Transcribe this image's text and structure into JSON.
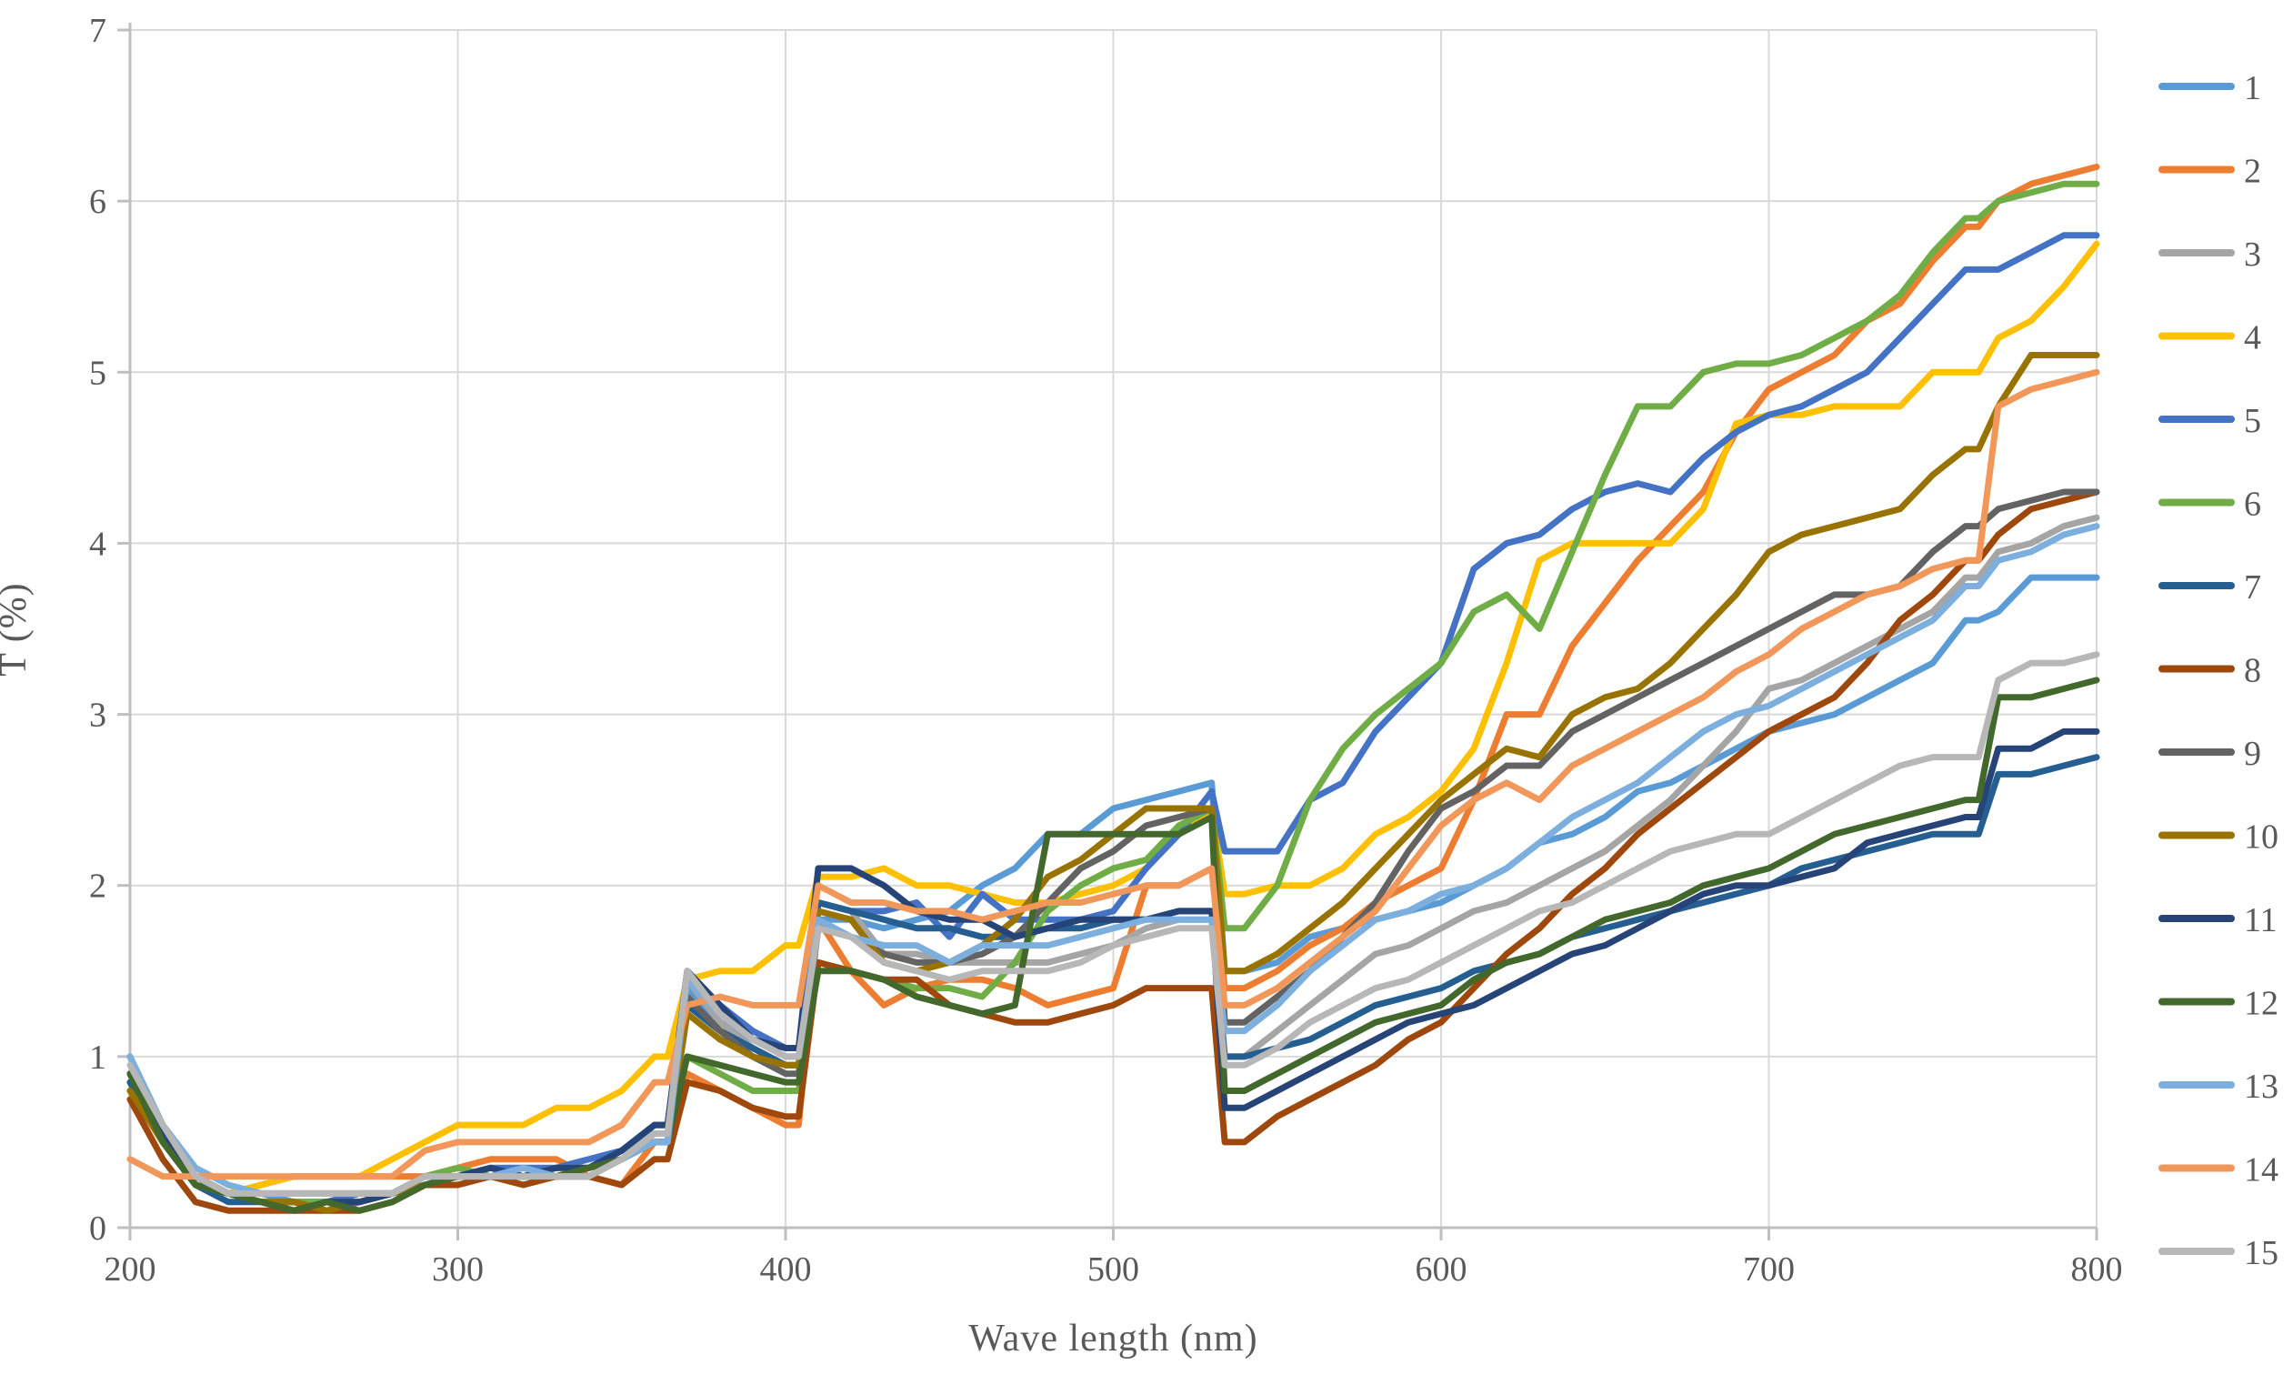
{
  "page": {
    "background": "#FFFFFF"
  },
  "style": {
    "grid_color": "#D9D9D9",
    "axis_color": "#BFBFBF",
    "text_color": "#595959",
    "line_width": 7
  },
  "chart_data": {
    "type": "line",
    "title": "",
    "xlabel": "Wave length (nm)",
    "ylabel": "T (%)",
    "xlim": [
      200,
      800
    ],
    "ylim": [
      0,
      7
    ],
    "xticks": [
      200,
      300,
      400,
      500,
      600,
      700,
      800
    ],
    "yticks": [
      0,
      1,
      2,
      3,
      4,
      5,
      6,
      7
    ],
    "grid": true,
    "legend_position": "right",
    "x": [
      200,
      210,
      220,
      230,
      240,
      250,
      260,
      270,
      280,
      290,
      300,
      310,
      320,
      330,
      340,
      350,
      360,
      364,
      370,
      380,
      390,
      400,
      404,
      410,
      420,
      430,
      440,
      450,
      460,
      470,
      480,
      490,
      500,
      510,
      520,
      530,
      534,
      540,
      550,
      560,
      570,
      580,
      590,
      600,
      610,
      620,
      630,
      640,
      650,
      660,
      670,
      680,
      690,
      700,
      710,
      720,
      730,
      740,
      750,
      760,
      764,
      770,
      780,
      790,
      800
    ],
    "series": [
      {
        "name": "1",
        "color": "#5B9BD5",
        "values": [
          1.0,
          0.55,
          0.3,
          0.2,
          0.2,
          0.15,
          0.15,
          0.2,
          0.2,
          0.3,
          0.3,
          0.3,
          0.35,
          0.3,
          0.35,
          0.45,
          0.6,
          0.6,
          1.4,
          1.2,
          1.1,
          1.0,
          1.0,
          1.8,
          1.8,
          1.75,
          1.8,
          1.85,
          2.0,
          2.1,
          2.3,
          2.3,
          2.45,
          2.5,
          2.55,
          2.6,
          1.5,
          1.5,
          1.55,
          1.7,
          1.75,
          1.8,
          1.85,
          1.9,
          2.0,
          2.1,
          2.25,
          2.3,
          2.4,
          2.55,
          2.6,
          2.7,
          2.8,
          2.9,
          2.95,
          3.0,
          3.1,
          3.2,
          3.3,
          3.55,
          3.55,
          3.6,
          3.8,
          3.8,
          3.8
        ]
      },
      {
        "name": "2",
        "color": "#ED7D31",
        "values": [
          0.8,
          0.5,
          0.25,
          0.2,
          0.25,
          0.3,
          0.3,
          0.3,
          0.3,
          0.3,
          0.35,
          0.4,
          0.4,
          0.4,
          0.3,
          0.25,
          0.5,
          0.5,
          0.9,
          0.8,
          0.7,
          0.6,
          0.6,
          1.8,
          1.5,
          1.3,
          1.4,
          1.45,
          1.45,
          1.4,
          1.3,
          1.35,
          1.4,
          2.0,
          2.0,
          2.1,
          1.4,
          1.4,
          1.5,
          1.65,
          1.75,
          1.9,
          2.0,
          2.1,
          2.5,
          3.0,
          3.0,
          3.4,
          3.65,
          3.9,
          4.1,
          4.3,
          4.65,
          4.9,
          5.0,
          5.1,
          5.3,
          5.4,
          5.65,
          5.85,
          5.85,
          6.0,
          6.1,
          6.15,
          6.2
        ]
      },
      {
        "name": "3",
        "color": "#A5A5A5",
        "values": [
          1.0,
          0.6,
          0.3,
          0.2,
          0.2,
          0.2,
          0.2,
          0.2,
          0.2,
          0.3,
          0.3,
          0.3,
          0.3,
          0.3,
          0.3,
          0.4,
          0.55,
          0.55,
          1.45,
          1.2,
          1.05,
          0.95,
          0.95,
          1.9,
          1.85,
          1.6,
          1.6,
          1.55,
          1.55,
          1.55,
          1.55,
          1.6,
          1.65,
          1.75,
          1.8,
          1.8,
          1.0,
          1.0,
          1.15,
          1.3,
          1.45,
          1.6,
          1.65,
          1.75,
          1.85,
          1.9,
          2.0,
          2.1,
          2.2,
          2.35,
          2.5,
          2.7,
          2.9,
          3.15,
          3.2,
          3.3,
          3.4,
          3.5,
          3.6,
          3.8,
          3.8,
          3.95,
          4.0,
          4.1,
          4.15
        ]
      },
      {
        "name": "4",
        "color": "#FFC000",
        "values": [
          0.85,
          0.5,
          0.25,
          0.2,
          0.25,
          0.3,
          0.3,
          0.3,
          0.4,
          0.5,
          0.6,
          0.6,
          0.6,
          0.7,
          0.7,
          0.8,
          1.0,
          1.0,
          1.45,
          1.5,
          1.5,
          1.65,
          1.65,
          2.05,
          2.05,
          2.1,
          2.0,
          2.0,
          1.95,
          1.9,
          1.9,
          1.95,
          2.0,
          2.1,
          2.3,
          2.45,
          1.95,
          1.95,
          2.0,
          2.0,
          2.1,
          2.3,
          2.4,
          2.55,
          2.8,
          3.3,
          3.9,
          4.0,
          4.0,
          4.0,
          4.0,
          4.2,
          4.7,
          4.75,
          4.75,
          4.8,
          4.8,
          4.8,
          5.0,
          5.0,
          5.0,
          5.2,
          5.3,
          5.5,
          5.75
        ]
      },
      {
        "name": "5",
        "color": "#4472C4",
        "values": [
          0.9,
          0.55,
          0.3,
          0.2,
          0.15,
          0.15,
          0.15,
          0.2,
          0.2,
          0.3,
          0.3,
          0.35,
          0.35,
          0.35,
          0.4,
          0.45,
          0.6,
          0.6,
          1.5,
          1.3,
          1.15,
          1.05,
          1.05,
          1.9,
          1.85,
          1.85,
          1.9,
          1.7,
          1.95,
          1.8,
          1.8,
          1.8,
          1.85,
          2.1,
          2.3,
          2.55,
          2.2,
          2.2,
          2.2,
          2.5,
          2.6,
          2.9,
          3.1,
          3.3,
          3.85,
          4.0,
          4.05,
          4.2,
          4.3,
          4.35,
          4.3,
          4.5,
          4.65,
          4.75,
          4.8,
          4.9,
          5.0,
          5.2,
          5.4,
          5.6,
          5.6,
          5.6,
          5.7,
          5.8,
          5.8
        ]
      },
      {
        "name": "6",
        "color": "#70AD47",
        "values": [
          0.9,
          0.5,
          0.25,
          0.2,
          0.15,
          0.15,
          0.15,
          0.15,
          0.2,
          0.3,
          0.35,
          0.3,
          0.3,
          0.35,
          0.35,
          0.4,
          0.55,
          0.55,
          1.0,
          0.9,
          0.8,
          0.8,
          0.8,
          1.55,
          1.5,
          1.45,
          1.4,
          1.4,
          1.35,
          1.55,
          1.85,
          2.0,
          2.1,
          2.15,
          2.35,
          2.45,
          1.75,
          1.75,
          2.0,
          2.5,
          2.8,
          3.0,
          3.15,
          3.3,
          3.6,
          3.7,
          3.5,
          3.95,
          4.4,
          4.8,
          4.8,
          5.0,
          5.05,
          5.05,
          5.1,
          5.2,
          5.3,
          5.45,
          5.7,
          5.9,
          5.9,
          6.0,
          6.05,
          6.1,
          6.1
        ]
      },
      {
        "name": "7",
        "color": "#255E91",
        "values": [
          0.85,
          0.5,
          0.25,
          0.15,
          0.15,
          0.1,
          0.15,
          0.15,
          0.2,
          0.25,
          0.3,
          0.3,
          0.3,
          0.3,
          0.35,
          0.4,
          0.5,
          0.5,
          1.3,
          1.15,
          1.05,
          0.95,
          0.95,
          1.9,
          1.85,
          1.8,
          1.75,
          1.75,
          1.7,
          1.7,
          1.75,
          1.75,
          1.8,
          1.8,
          1.85,
          1.85,
          1.0,
          1.0,
          1.05,
          1.1,
          1.2,
          1.3,
          1.35,
          1.4,
          1.5,
          1.55,
          1.6,
          1.7,
          1.75,
          1.8,
          1.85,
          1.9,
          1.95,
          2.0,
          2.1,
          2.15,
          2.2,
          2.25,
          2.3,
          2.3,
          2.3,
          2.65,
          2.65,
          2.7,
          2.75
        ]
      },
      {
        "name": "8",
        "color": "#9E480E",
        "values": [
          0.75,
          0.4,
          0.15,
          0.1,
          0.1,
          0.1,
          0.1,
          0.1,
          0.15,
          0.25,
          0.25,
          0.3,
          0.25,
          0.3,
          0.3,
          0.25,
          0.4,
          0.4,
          0.85,
          0.8,
          0.7,
          0.65,
          0.65,
          1.55,
          1.5,
          1.45,
          1.45,
          1.3,
          1.25,
          1.2,
          1.2,
          1.25,
          1.3,
          1.4,
          1.4,
          1.4,
          0.5,
          0.5,
          0.65,
          0.75,
          0.85,
          0.95,
          1.1,
          1.2,
          1.4,
          1.6,
          1.75,
          1.95,
          2.1,
          2.3,
          2.45,
          2.6,
          2.75,
          2.9,
          3.0,
          3.1,
          3.3,
          3.55,
          3.7,
          3.9,
          3.9,
          4.05,
          4.2,
          4.25,
          4.3
        ]
      },
      {
        "name": "9",
        "color": "#636363",
        "values": [
          0.9,
          0.55,
          0.25,
          0.2,
          0.15,
          0.15,
          0.1,
          0.15,
          0.2,
          0.25,
          0.3,
          0.3,
          0.3,
          0.3,
          0.3,
          0.4,
          0.5,
          0.5,
          1.35,
          1.15,
          1.0,
          0.9,
          0.9,
          1.75,
          1.7,
          1.6,
          1.55,
          1.55,
          1.6,
          1.7,
          1.9,
          2.1,
          2.2,
          2.35,
          2.4,
          2.45,
          1.2,
          1.2,
          1.35,
          1.5,
          1.7,
          1.9,
          2.2,
          2.45,
          2.55,
          2.7,
          2.7,
          2.9,
          3.0,
          3.1,
          3.2,
          3.3,
          3.4,
          3.5,
          3.6,
          3.7,
          3.7,
          3.75,
          3.95,
          4.1,
          4.1,
          4.2,
          4.25,
          4.3,
          4.3
        ]
      },
      {
        "name": "10",
        "color": "#997300",
        "values": [
          0.8,
          0.5,
          0.25,
          0.2,
          0.15,
          0.15,
          0.1,
          0.15,
          0.2,
          0.25,
          0.3,
          0.3,
          0.3,
          0.3,
          0.35,
          0.4,
          0.5,
          0.5,
          1.25,
          1.1,
          1.0,
          0.95,
          0.95,
          1.85,
          1.8,
          1.55,
          1.5,
          1.55,
          1.65,
          1.8,
          2.05,
          2.15,
          2.3,
          2.45,
          2.45,
          2.45,
          1.5,
          1.5,
          1.6,
          1.75,
          1.9,
          2.1,
          2.3,
          2.5,
          2.65,
          2.8,
          2.75,
          3.0,
          3.1,
          3.15,
          3.3,
          3.5,
          3.7,
          3.95,
          4.05,
          4.1,
          4.15,
          4.2,
          4.4,
          4.55,
          4.55,
          4.8,
          5.1,
          5.1,
          5.1
        ]
      },
      {
        "name": "11",
        "color": "#264478",
        "values": [
          0.9,
          0.55,
          0.3,
          0.2,
          0.15,
          0.1,
          0.15,
          0.15,
          0.2,
          0.3,
          0.3,
          0.35,
          0.3,
          0.35,
          0.35,
          0.45,
          0.6,
          0.6,
          1.5,
          1.3,
          1.1,
          1.05,
          1.05,
          2.1,
          2.1,
          2.0,
          1.85,
          1.8,
          1.8,
          1.7,
          1.75,
          1.8,
          1.8,
          1.8,
          1.85,
          1.85,
          0.7,
          0.7,
          0.8,
          0.9,
          1.0,
          1.1,
          1.2,
          1.25,
          1.3,
          1.4,
          1.5,
          1.6,
          1.65,
          1.75,
          1.85,
          1.95,
          2.0,
          2.0,
          2.05,
          2.1,
          2.25,
          2.3,
          2.35,
          2.4,
          2.4,
          2.8,
          2.8,
          2.9,
          2.9
        ]
      },
      {
        "name": "12",
        "color": "#43682B",
        "values": [
          0.9,
          0.5,
          0.25,
          0.2,
          0.15,
          0.1,
          0.15,
          0.1,
          0.15,
          0.25,
          0.3,
          0.3,
          0.3,
          0.3,
          0.35,
          0.4,
          0.5,
          0.5,
          1.0,
          0.95,
          0.9,
          0.85,
          0.85,
          1.5,
          1.5,
          1.45,
          1.35,
          1.3,
          1.25,
          1.3,
          2.3,
          2.3,
          2.3,
          2.3,
          2.3,
          2.4,
          0.8,
          0.8,
          0.9,
          1.0,
          1.1,
          1.2,
          1.25,
          1.3,
          1.45,
          1.55,
          1.6,
          1.7,
          1.8,
          1.85,
          1.9,
          2.0,
          2.05,
          2.1,
          2.2,
          2.3,
          2.35,
          2.4,
          2.45,
          2.5,
          2.5,
          3.1,
          3.1,
          3.15,
          3.2
        ]
      },
      {
        "name": "13",
        "color": "#7CAFDD",
        "values": [
          1.0,
          0.6,
          0.35,
          0.25,
          0.2,
          0.2,
          0.2,
          0.2,
          0.2,
          0.3,
          0.3,
          0.3,
          0.35,
          0.3,
          0.3,
          0.4,
          0.5,
          0.5,
          1.45,
          1.25,
          1.1,
          1.0,
          1.0,
          1.8,
          1.7,
          1.65,
          1.65,
          1.55,
          1.65,
          1.65,
          1.65,
          1.7,
          1.75,
          1.8,
          1.8,
          1.8,
          1.15,
          1.15,
          1.3,
          1.5,
          1.65,
          1.8,
          1.85,
          1.95,
          2.0,
          2.1,
          2.25,
          2.4,
          2.5,
          2.6,
          2.75,
          2.9,
          3.0,
          3.05,
          3.15,
          3.25,
          3.35,
          3.45,
          3.55,
          3.75,
          3.75,
          3.9,
          3.95,
          4.05,
          4.1
        ]
      },
      {
        "name": "14",
        "color": "#F1975A",
        "values": [
          0.4,
          0.3,
          0.3,
          0.3,
          0.3,
          0.3,
          0.3,
          0.3,
          0.3,
          0.45,
          0.5,
          0.5,
          0.5,
          0.5,
          0.5,
          0.6,
          0.85,
          0.85,
          1.3,
          1.35,
          1.3,
          1.3,
          1.3,
          2.0,
          1.9,
          1.9,
          1.85,
          1.85,
          1.8,
          1.85,
          1.9,
          1.9,
          1.95,
          2.0,
          2.0,
          2.1,
          1.3,
          1.3,
          1.4,
          1.55,
          1.7,
          1.85,
          2.1,
          2.35,
          2.5,
          2.6,
          2.5,
          2.7,
          2.8,
          2.9,
          3.0,
          3.1,
          3.25,
          3.35,
          3.5,
          3.6,
          3.7,
          3.75,
          3.85,
          3.9,
          3.9,
          4.8,
          4.9,
          4.95,
          5.0
        ]
      },
      {
        "name": "15",
        "color": "#B7B7B7",
        "values": [
          0.95,
          0.6,
          0.3,
          0.2,
          0.2,
          0.2,
          0.2,
          0.2,
          0.2,
          0.3,
          0.3,
          0.3,
          0.3,
          0.3,
          0.3,
          0.4,
          0.55,
          0.55,
          1.5,
          1.25,
          1.1,
          1.0,
          1.0,
          1.75,
          1.7,
          1.55,
          1.5,
          1.45,
          1.5,
          1.5,
          1.5,
          1.55,
          1.65,
          1.7,
          1.75,
          1.75,
          0.95,
          0.95,
          1.05,
          1.2,
          1.3,
          1.4,
          1.45,
          1.55,
          1.65,
          1.75,
          1.85,
          1.9,
          2.0,
          2.1,
          2.2,
          2.25,
          2.3,
          2.3,
          2.4,
          2.5,
          2.6,
          2.7,
          2.75,
          2.75,
          2.75,
          3.2,
          3.3,
          3.3,
          3.35
        ]
      }
    ]
  }
}
